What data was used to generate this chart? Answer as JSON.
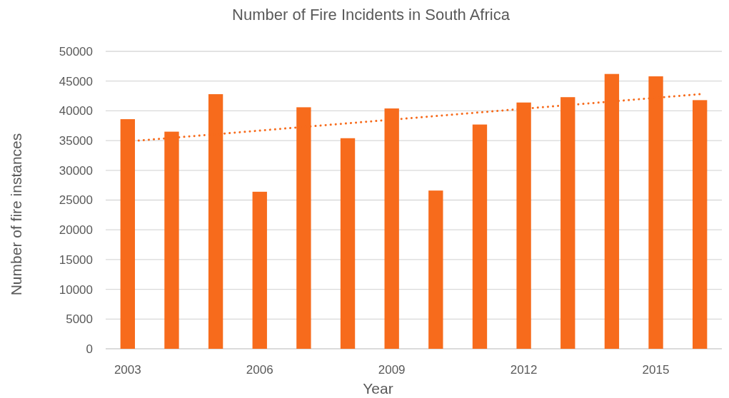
{
  "chart_data": {
    "type": "bar",
    "title": "Number of Fire Incidents in South Africa",
    "xlabel": "Year",
    "ylabel": "Number of fire instances",
    "x": [
      2003,
      2004,
      2005,
      2006,
      2007,
      2008,
      2009,
      2010,
      2011,
      2012,
      2013,
      2014,
      2015,
      2016
    ],
    "xlim": [
      2002.5,
      2016.5
    ],
    "xticks": [
      2003,
      2006,
      2009,
      2012,
      2015
    ],
    "ylim": [
      0,
      50000
    ],
    "yticks": [
      0,
      5000,
      10000,
      15000,
      20000,
      25000,
      30000,
      35000,
      40000,
      45000,
      50000
    ],
    "grid": "y",
    "series": [
      {
        "color": "#f76b1c",
        "values": [
          38600,
          36500,
          42800,
          26400,
          40600,
          35400,
          40400,
          26600,
          37700,
          41400,
          42300,
          46200,
          45800,
          41800
        ]
      },
      {
        "type": "line",
        "color": "#f76b1c",
        "x": [
          2003.25,
          2016
        ],
        "values": [
          35000,
          42800
        ],
        "line_style": "dotted",
        "marker": "none"
      }
    ]
  }
}
